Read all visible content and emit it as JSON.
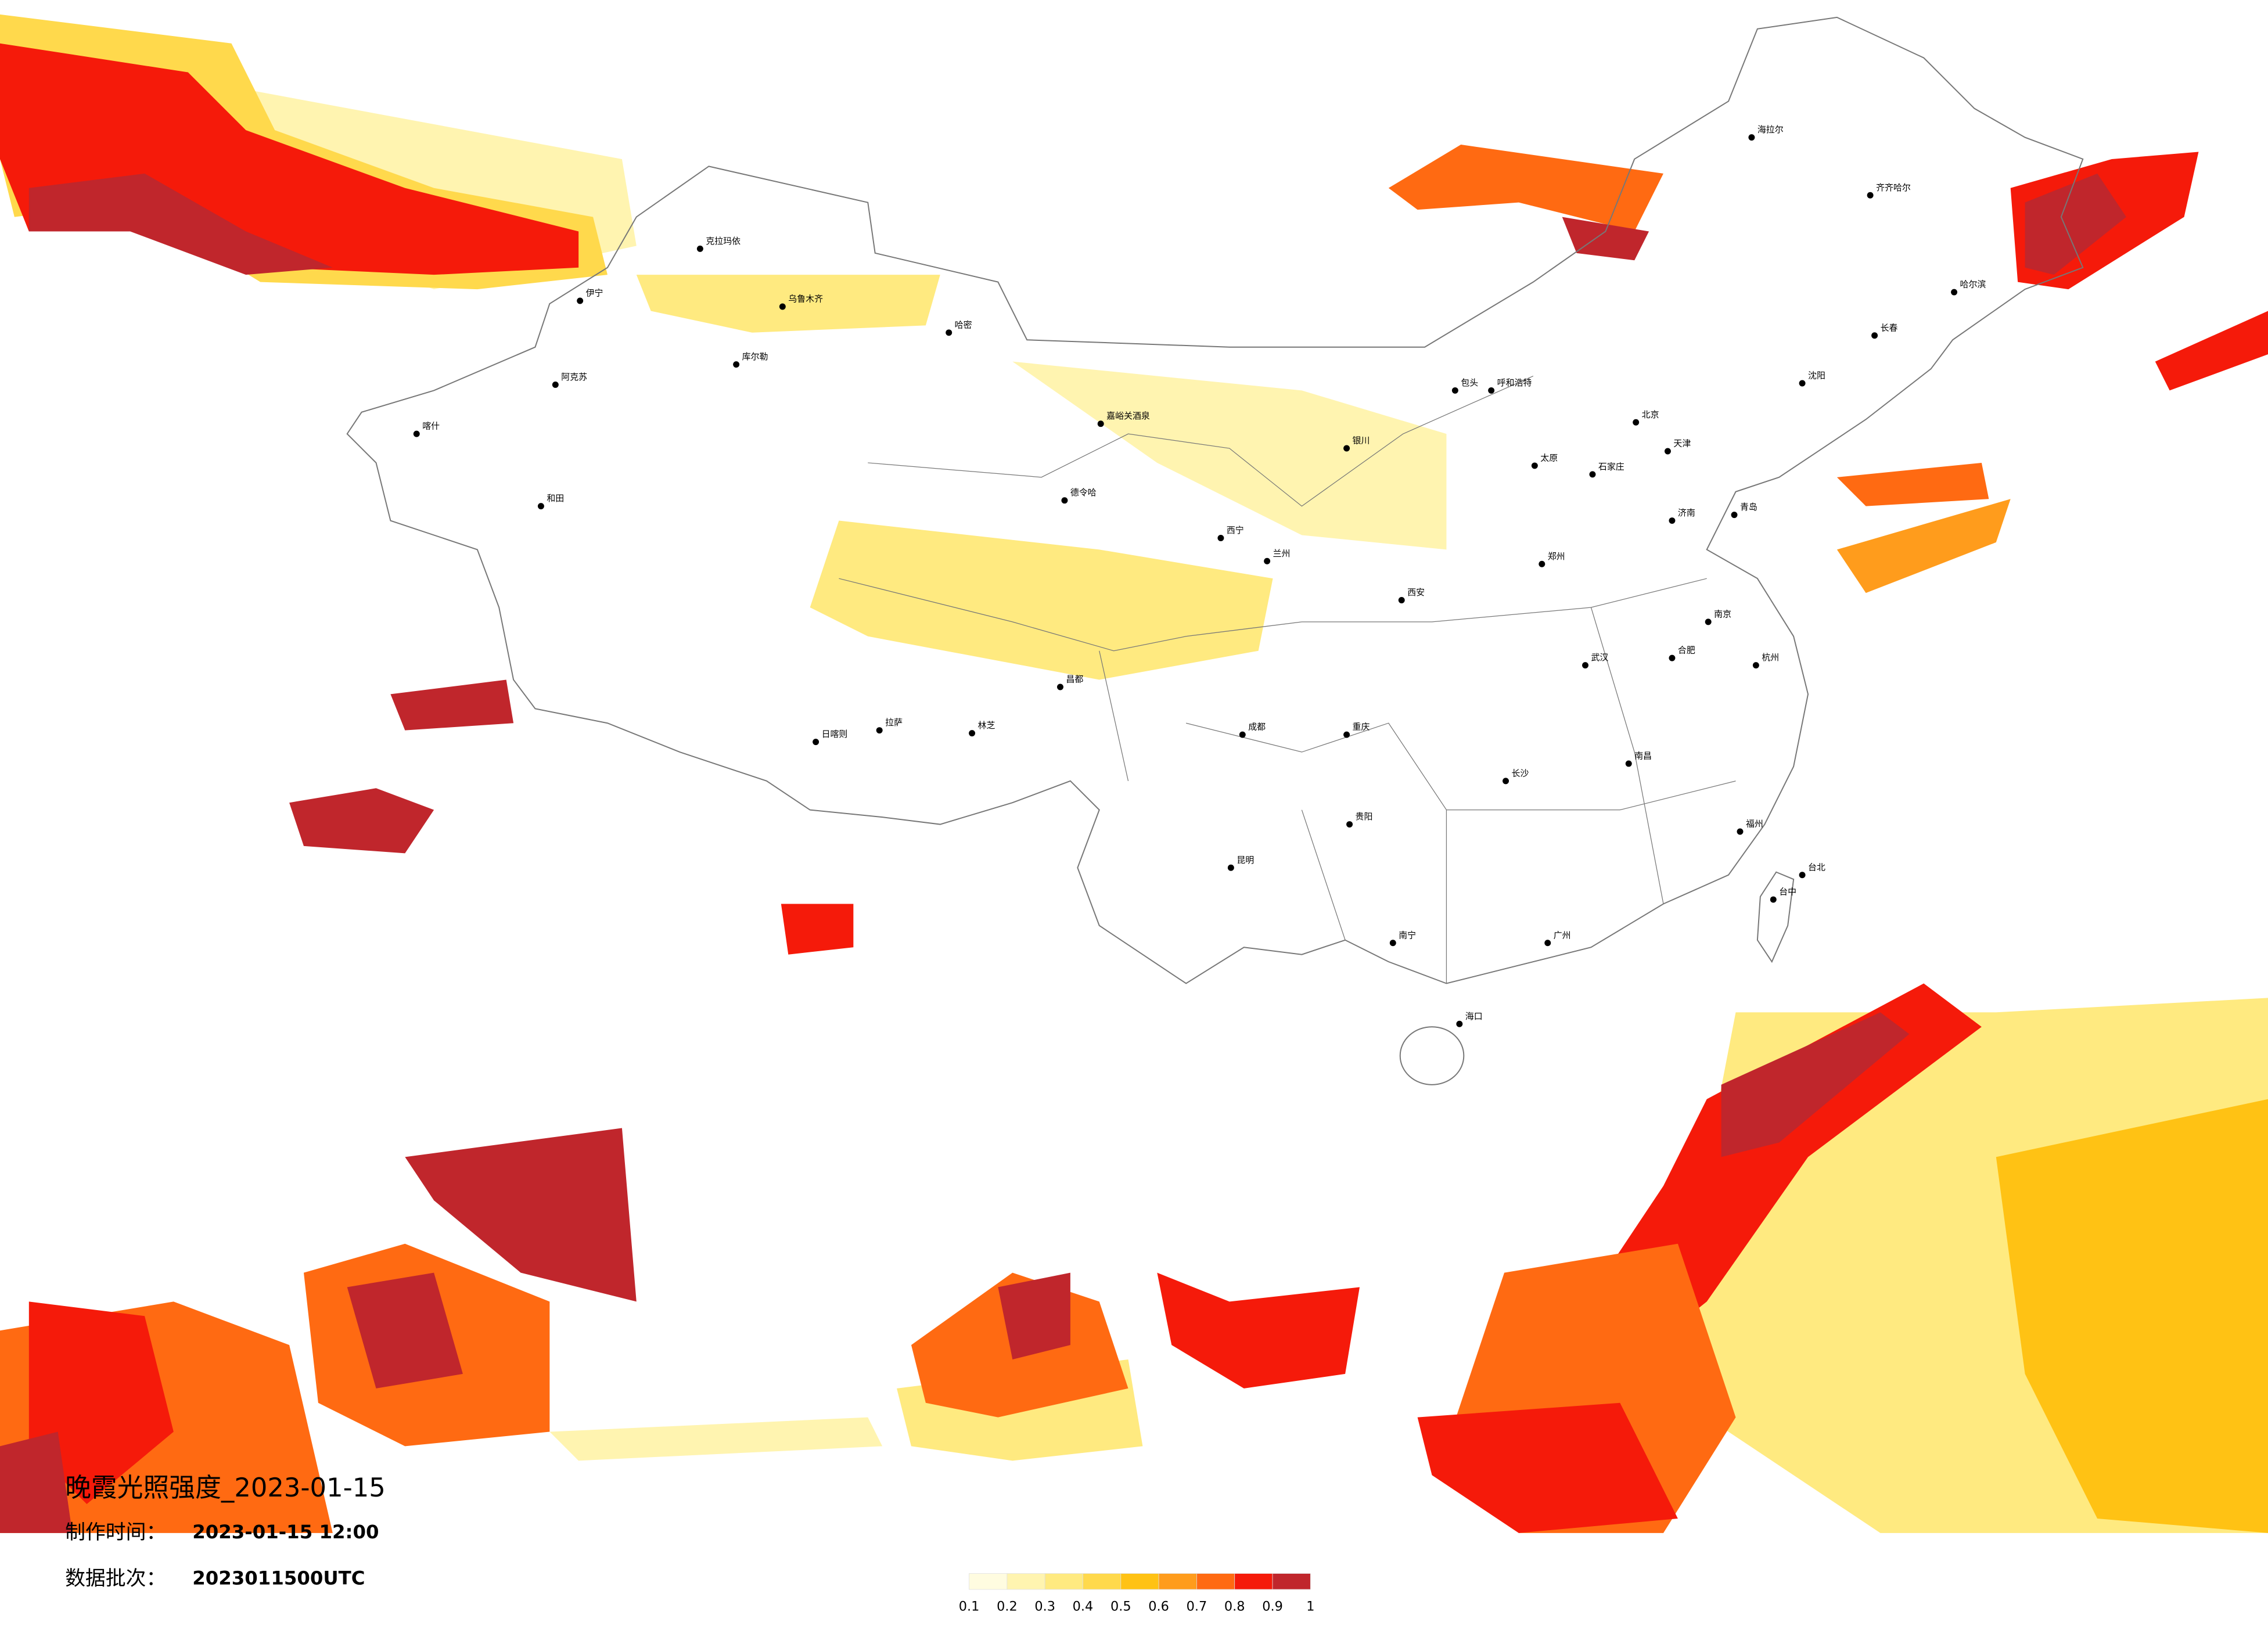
{
  "title": "晚霞光照强度_2023-01-15",
  "production_time": {
    "label": "制作时间：",
    "value": "2023-01-15 12:00"
  },
  "data_batch": {
    "label": "数据批次：",
    "value": "2023011500UTC"
  },
  "legend": {
    "colors": [
      "#fffce0",
      "#fff4b0",
      "#ffea80",
      "#ffd94c",
      "#ffc214",
      "#ff9c1c",
      "#ff6a12",
      "#f51a0a",
      "#c0262c"
    ],
    "ticks": [
      0.1,
      0.2,
      0.3,
      0.4,
      0.5,
      0.6,
      0.7,
      0.8,
      0.9,
      1
    ]
  },
  "cities": [
    "克拉玛依",
    "乌鲁木齐",
    "哈密",
    "伊宁",
    "库尔勒",
    "阿克苏",
    "喀什",
    "和田",
    "德令哈",
    "嘉峪关酒泉",
    "西宁",
    "兰州",
    "拉萨",
    "日喀则",
    "林芝",
    "昌都",
    "成都",
    "重庆",
    "昆明",
    "贵阳",
    "南宁",
    "海口",
    "广州",
    "长沙",
    "武汉",
    "南昌",
    "福州",
    "杭州",
    "南京",
    "合肥",
    "郑州",
    "西安",
    "太原",
    "石家庄",
    "北京",
    "天津",
    "济南",
    "青岛",
    "沈阳",
    "长春",
    "哈尔滨",
    "呼和浩特",
    "银川",
    "包头",
    "海拉尔",
    "齐齐哈尔",
    "台北",
    "台中"
  ]
}
